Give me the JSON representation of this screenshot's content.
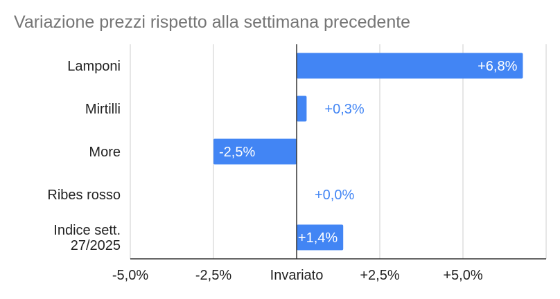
{
  "chart_data": {
    "type": "bar",
    "orientation": "horizontal",
    "title": "Variazione prezzi rispetto alla settimana precedente",
    "categories": [
      [
        "Lamponi"
      ],
      [
        "Mirtilli"
      ],
      [
        "More"
      ],
      [
        "Ribes rosso"
      ],
      [
        "Indice sett.",
        "27/2025"
      ]
    ],
    "values": [
      6.8,
      0.3,
      -2.5,
      0.0,
      1.4
    ],
    "data_labels": [
      "+6,8%",
      "+0,3%",
      "-2,5%",
      "+0,0%",
      "+1,4%"
    ],
    "xlim": [
      -5,
      7.5
    ],
    "xticks": [
      -5,
      -2.5,
      0,
      2.5,
      5
    ],
    "xtick_labels": [
      "-5,0%",
      "-2,5%",
      "Invariato",
      "+2,5%",
      "+5,0%"
    ],
    "grid": true,
    "legend": "none",
    "colors": {
      "bar": "#4285f4",
      "label_inside": "#ffffff",
      "label_outside": "#4285f4",
      "grid": "#cccccc",
      "axis": "#333333",
      "title": "#757575",
      "text": "#222222"
    }
  }
}
